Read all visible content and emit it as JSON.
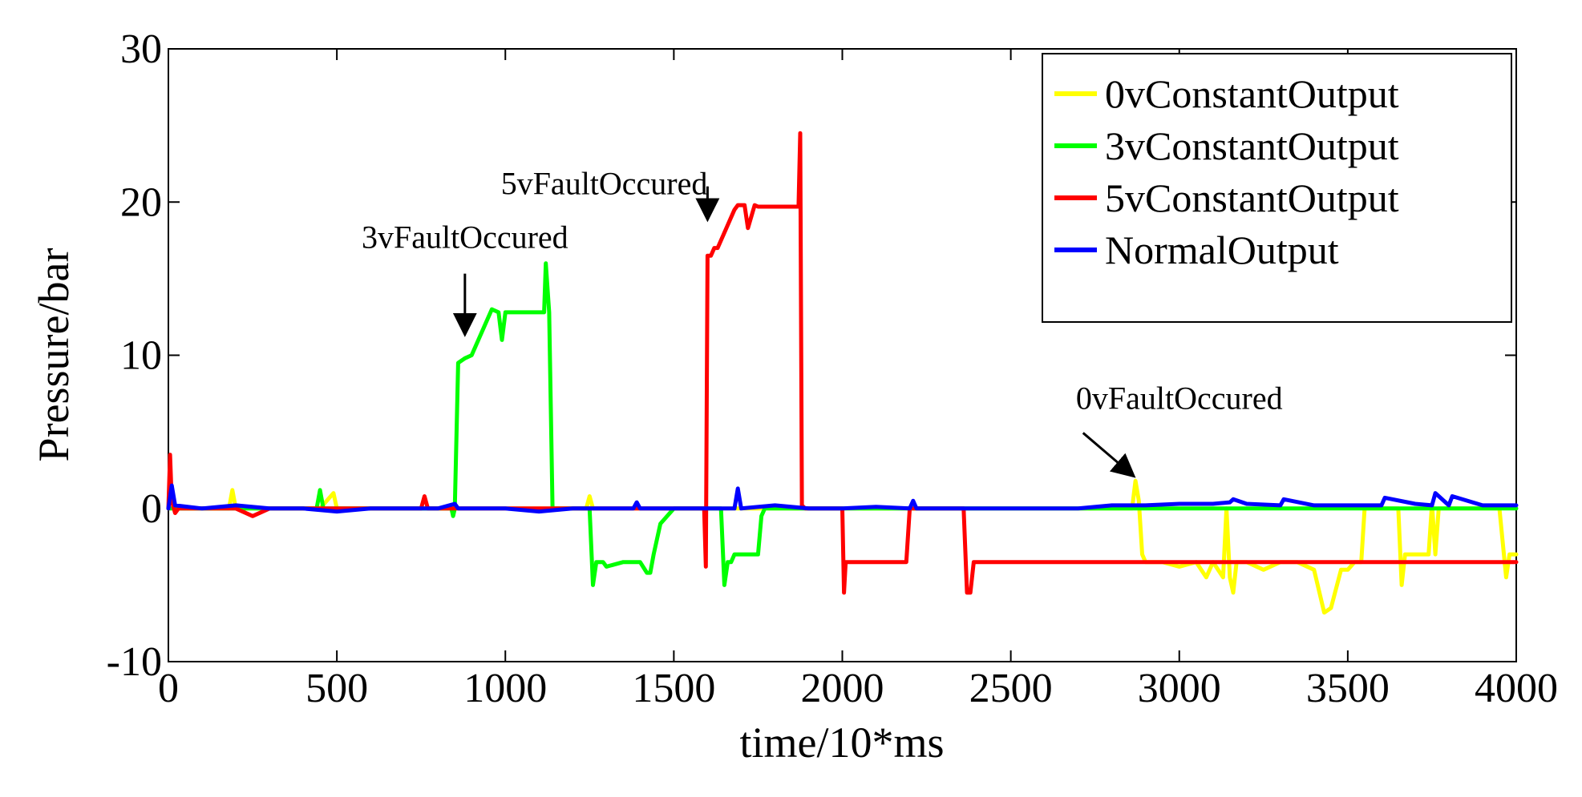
{
  "chart_data": {
    "type": "line",
    "title": "",
    "xlabel": "time/10*ms",
    "ylabel": "Pressure/bar",
    "xlim": [
      0,
      4000
    ],
    "ylim": [
      -10,
      30
    ],
    "xticks": [
      0,
      500,
      1000,
      1500,
      2000,
      2500,
      3000,
      3500,
      4000
    ],
    "yticks": [
      -10,
      0,
      10,
      20,
      30
    ],
    "xtick_labels": [
      "0",
      "500",
      "1000",
      "1500",
      "2000",
      "2500",
      "3000",
      "3500",
      "4000"
    ],
    "ytick_labels": [
      "-10",
      "0",
      "10",
      "20",
      "30"
    ],
    "grid": false,
    "legend_position": "top-right",
    "series": [
      {
        "name": "0vConstantOutput",
        "color": "#ffff00",
        "x": [
          0,
          100,
          180,
          190,
          200,
          300,
          450,
          490,
          500,
          600,
          800,
          900,
          1000,
          1240,
          1250,
          1260,
          1400,
          1500,
          1600,
          1700,
          2000,
          2200,
          2400,
          2600,
          2800,
          2860,
          2870,
          2880,
          2890,
          2900,
          2950,
          3000,
          3050,
          3080,
          3100,
          3130,
          3140,
          3150,
          3160,
          3170,
          3200,
          3250,
          3300,
          3350,
          3400,
          3430,
          3450,
          3480,
          3500,
          3520,
          3540,
          3550,
          3600,
          3650,
          3660,
          3670,
          3680,
          3690,
          3700,
          3740,
          3750,
          3760,
          3770,
          3800,
          3850,
          3900,
          3950,
          3970,
          3980,
          3990,
          4000
        ],
        "y": [
          0,
          0,
          0,
          1.2,
          0,
          0,
          0,
          1,
          0,
          0,
          0,
          0,
          0,
          0,
          0.8,
          0,
          0,
          0,
          0,
          0,
          0,
          0,
          0,
          0,
          0,
          0,
          1.8,
          0.5,
          -3,
          -3.5,
          -3.5,
          -3.8,
          -3.5,
          -4.5,
          -3.5,
          -4.5,
          0,
          -4.5,
          -5.5,
          -3.5,
          -3.5,
          -4,
          -3.5,
          -3.5,
          -4,
          -6.8,
          -6.5,
          -4,
          -4,
          -3.5,
          -3.5,
          0,
          0,
          0,
          -5,
          -3,
          -3,
          -3,
          -3,
          -3,
          0.3,
          -3,
          0,
          0,
          0,
          0,
          0,
          -4.5,
          -3,
          -3,
          -3
        ]
      },
      {
        "name": "3vConstantOutput",
        "color": "#00ff00",
        "x": [
          0,
          300,
          440,
          450,
          460,
          700,
          840,
          845,
          850,
          860,
          880,
          900,
          920,
          940,
          960,
          980,
          990,
          1000,
          1020,
          1050,
          1080,
          1110,
          1115,
          1120,
          1130,
          1140,
          1200,
          1240,
          1250,
          1260,
          1270,
          1280,
          1290,
          1300,
          1350,
          1400,
          1420,
          1430,
          1440,
          1460,
          1500,
          1600,
          1640,
          1650,
          1660,
          1670,
          1680,
          1700,
          1750,
          1760,
          1770,
          1800,
          2000,
          2500,
          3000,
          3500,
          4000
        ],
        "y": [
          0,
          0,
          0,
          1.2,
          0,
          0,
          0,
          -0.5,
          0,
          9.5,
          9.8,
          10,
          11,
          12,
          13,
          12.8,
          11,
          12.8,
          12.8,
          12.8,
          12.8,
          12.8,
          12.8,
          16,
          12.8,
          0,
          0,
          0,
          0,
          -5,
          -3.5,
          -3.5,
          -3.5,
          -3.8,
          -3.5,
          -3.5,
          -4.2,
          -4.2,
          -3,
          -1,
          0,
          0,
          0,
          -5,
          -3.5,
          -3.5,
          -3,
          -3,
          -3,
          -0.5,
          0,
          0,
          0,
          0,
          0,
          0,
          0
        ]
      },
      {
        "name": "5vConstantOutput",
        "color": "#ff0000",
        "x": [
          0,
          5,
          10,
          20,
          30,
          100,
          200,
          250,
          300,
          400,
          600,
          750,
          760,
          770,
          800,
          1000,
          1200,
          1400,
          1590,
          1595,
          1600,
          1610,
          1620,
          1630,
          1650,
          1680,
          1690,
          1700,
          1710,
          1720,
          1740,
          1750,
          1760,
          1770,
          1800,
          1850,
          1870,
          1875,
          1880,
          1890,
          2000,
          2005,
          2010,
          2020,
          2030,
          2100,
          2150,
          2190,
          2200,
          2300,
          2360,
          2370,
          2380,
          2390,
          2400,
          2500,
          3000,
          3500,
          4000
        ],
        "y": [
          0,
          3.5,
          0.5,
          -0.3,
          0,
          0,
          0,
          -0.5,
          0,
          0,
          0,
          0,
          0.8,
          0,
          0,
          0,
          0,
          0,
          0,
          -3.8,
          16.5,
          16.5,
          17,
          17,
          18,
          19.5,
          19.8,
          19.8,
          19.8,
          18.3,
          19.8,
          19.7,
          19.7,
          19.7,
          19.7,
          19.7,
          19.7,
          24.5,
          0.2,
          0,
          0,
          -5.5,
          -3.5,
          -3.5,
          -3.5,
          -3.5,
          -3.5,
          -3.5,
          0,
          0,
          0,
          -5.5,
          -5.5,
          -3.5,
          -3.5,
          -3.5,
          -3.5,
          -3.5,
          -3.5
        ]
      },
      {
        "name": "NormalOutput",
        "color": "#0000ff",
        "x": [
          0,
          10,
          20,
          100,
          200,
          300,
          400,
          500,
          600,
          700,
          800,
          850,
          860,
          900,
          1000,
          1100,
          1200,
          1300,
          1380,
          1390,
          1400,
          1500,
          1600,
          1680,
          1690,
          1700,
          1800,
          1900,
          2000,
          2100,
          2200,
          2210,
          2220,
          2300,
          2400,
          2500,
          2600,
          2700,
          2800,
          2900,
          3000,
          3100,
          3150,
          3160,
          3200,
          3300,
          3310,
          3400,
          3500,
          3600,
          3610,
          3700,
          3750,
          3760,
          3800,
          3810,
          3900,
          4000
        ],
        "y": [
          0,
          1.5,
          0.2,
          0,
          0.2,
          0,
          0,
          -0.2,
          0,
          0,
          0,
          0.3,
          0,
          0,
          0,
          -0.2,
          0,
          0,
          0,
          0.4,
          0,
          0,
          0,
          0,
          1.3,
          0,
          0.2,
          0,
          0,
          0.1,
          0,
          0.5,
          0,
          0,
          0,
          0,
          0,
          0,
          0.2,
          0.2,
          0.3,
          0.3,
          0.4,
          0.6,
          0.3,
          0.2,
          0.6,
          0.2,
          0.2,
          0.2,
          0.7,
          0.3,
          0.2,
          1,
          0.2,
          0.8,
          0.2,
          0.2
        ]
      }
    ],
    "annotations": [
      {
        "text": "5vFaultOccured",
        "x": 1600,
        "y": 20.5,
        "arrow_to": [
          1600,
          19
        ]
      },
      {
        "text": "3vFaultOccured",
        "x": 880,
        "y": 17,
        "arrow_to": [
          880,
          11.5
        ]
      },
      {
        "text": "0vFaultOccured",
        "x": 3000,
        "y": 6.5,
        "arrow_to": [
          2860,
          2.2
        ]
      }
    ]
  }
}
